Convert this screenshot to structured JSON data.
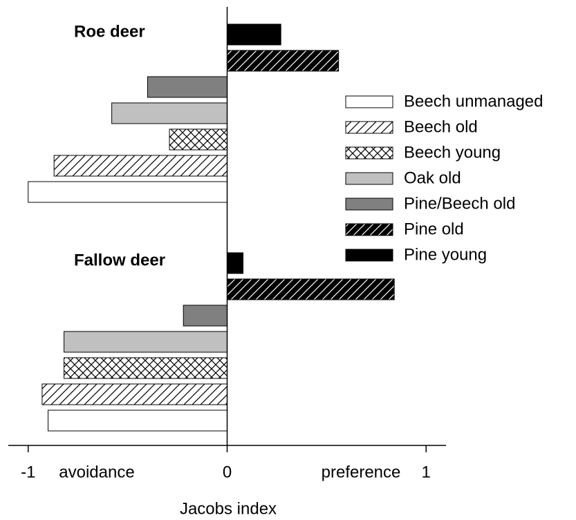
{
  "chart_data": {
    "type": "barh",
    "xlabel": "Jacobs index",
    "annotations": [
      "avoidance",
      "preference"
    ],
    "categories": [
      "Roe deer",
      "Fallow deer"
    ],
    "xlim": [
      -1.1,
      1.1
    ],
    "xticks": [
      -1,
      0,
      1
    ],
    "legend": "right",
    "series": [
      {
        "name": "Beech unmanaged",
        "color": "#ffffff",
        "hatch": "none",
        "values": [
          -1.0,
          -0.9
        ]
      },
      {
        "name": "Beech old",
        "color": "#ffffff",
        "hatch": "diagonal",
        "values": [
          -0.87,
          -0.93
        ]
      },
      {
        "name": "Beech young",
        "color": "#ffffff",
        "hatch": "cross",
        "values": [
          -0.29,
          -0.82
        ]
      },
      {
        "name": "Oak old",
        "color": "#c0c0c0",
        "hatch": "none",
        "values": [
          -0.58,
          -0.82
        ]
      },
      {
        "name": "Pine/Beech old",
        "color": "#808080",
        "hatch": "none",
        "values": [
          -0.4,
          -0.22
        ]
      },
      {
        "name": "Pine old",
        "color": "#000000",
        "hatch": "diagonal",
        "values": [
          0.56,
          0.84
        ]
      },
      {
        "name": "Pine young",
        "color": "#000000",
        "hatch": "none",
        "values": [
          0.27,
          0.08
        ]
      }
    ]
  }
}
